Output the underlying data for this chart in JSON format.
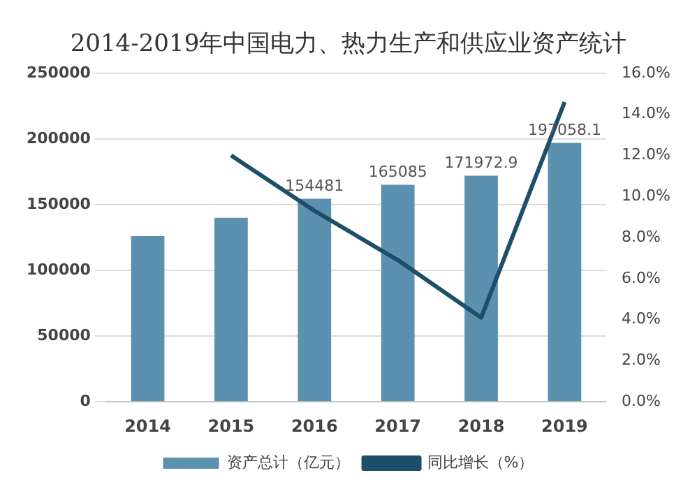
{
  "chart_data": {
    "type": "bar",
    "title": "2014-2019年中国电力、热力生产和供应业资产统计",
    "categories": [
      "2014",
      "2015",
      "2016",
      "2017",
      "2018",
      "2019"
    ],
    "series": [
      {
        "name": "资产总计（亿元）",
        "color": "#5b90ae",
        "values": [
          126000,
          140000,
          154481,
          165085,
          171972.9,
          197058.1
        ],
        "value_labels": [
          null,
          null,
          "154481",
          "165085",
          "171972.9",
          "197058.1"
        ]
      },
      {
        "name": "同比增长（%）",
        "type": "line",
        "axis": "y2",
        "color": "#1f4e6b",
        "values": [
          null,
          12.0,
          9.3,
          6.9,
          4.1,
          14.6
        ]
      }
    ],
    "ylim": [
      0,
      250000
    ],
    "yticks": [
      0,
      50000,
      100000,
      150000,
      200000,
      250000
    ],
    "y2lim": [
      0,
      16
    ],
    "y2ticks": [
      {
        "value": 0,
        "label": "0.0%"
      },
      {
        "value": 2,
        "label": "2.0%"
      },
      {
        "value": 4,
        "label": "4.0%"
      },
      {
        "value": 6,
        "label": "6.0%"
      },
      {
        "value": 8,
        "label": "8.0%"
      },
      {
        "value": 10,
        "label": "10.0%"
      },
      {
        "value": 12,
        "label": "12.0%"
      },
      {
        "value": 14,
        "label": "14.0%"
      },
      {
        "value": 16,
        "label": "16.0%"
      }
    ],
    "grid": "y",
    "legend": "bottom",
    "marker": "none",
    "line_style": "solid"
  }
}
